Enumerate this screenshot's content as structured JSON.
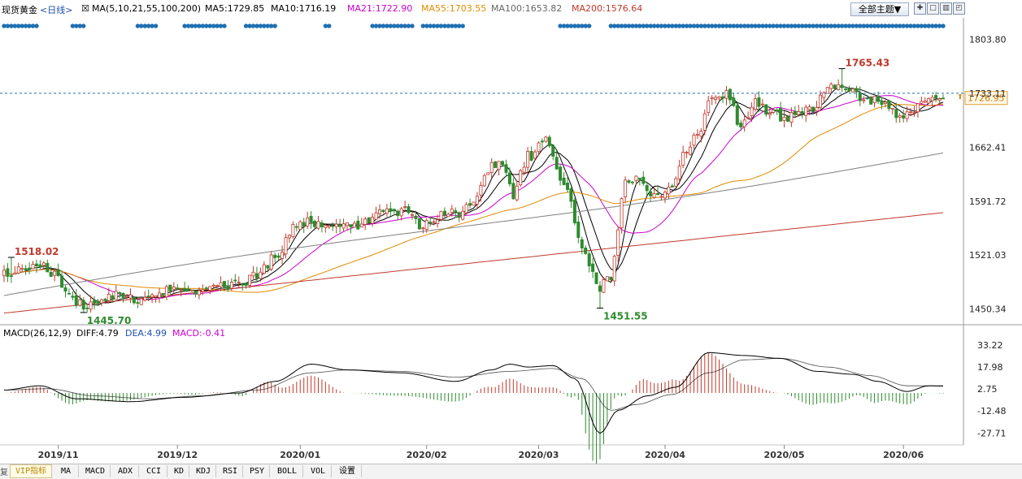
{
  "header": {
    "symbol": "现货黄金",
    "period": "<日线>",
    "indicator_name": "MA(5,10,21,55,100,200)",
    "ma_values": [
      {
        "label": "MA5:1729.85",
        "color": "#000000"
      },
      {
        "label": "MA10:1716.19",
        "color": "#000000"
      },
      {
        "label": "MA21:1722.90",
        "color": "#cc00cc"
      },
      {
        "label": "MA55:1703.55",
        "color": "#e08a00"
      },
      {
        "label": "MA100:1653.82",
        "color": "#666666"
      },
      {
        "label": "MA200:1576.64",
        "color": "#c0392b"
      }
    ],
    "theme_button": "全部主题▼",
    "toolbar_icons": [
      "zoom-icon",
      "window-icon",
      "grid-icon",
      "expand-icon"
    ]
  },
  "macd_header": {
    "name": "MACD(26,12,9)",
    "diff": "DIFF:4.79",
    "dea": "DEA:4.99",
    "macd": "MACD:-0.41"
  },
  "chart_data": [
    {
      "type": "candlestick",
      "y_ticks": [
        "1803.80",
        "1733.11",
        "1662.41",
        "1591.72",
        "1521.03",
        "1450.34"
      ],
      "ylim": [
        1435,
        1815
      ],
      "current_price": "1726.95",
      "annotations": [
        {
          "text": "1518.02",
          "index": 2,
          "value": 1518.02,
          "color": "#c0392b",
          "pos": "above"
        },
        {
          "text": "1445.70",
          "index": 22,
          "value": 1445.7,
          "color": "#2e8b2e",
          "pos": "below"
        },
        {
          "text": "1451.55",
          "index": 165,
          "value": 1451.55,
          "color": "#2e8b2e",
          "pos": "below"
        },
        {
          "text": "1765.43",
          "index": 232,
          "value": 1765.43,
          "color": "#c0392b",
          "pos": "above"
        }
      ],
      "anchors": [
        {
          "i": 0,
          "v": 1495
        },
        {
          "i": 5,
          "v": 1505
        },
        {
          "i": 10,
          "v": 1512
        },
        {
          "i": 14,
          "v": 1496
        },
        {
          "i": 18,
          "v": 1468
        },
        {
          "i": 22,
          "v": 1455
        },
        {
          "i": 28,
          "v": 1466
        },
        {
          "i": 33,
          "v": 1470
        },
        {
          "i": 38,
          "v": 1462
        },
        {
          "i": 42,
          "v": 1466
        },
        {
          "i": 46,
          "v": 1476
        },
        {
          "i": 50,
          "v": 1474
        },
        {
          "i": 55,
          "v": 1478
        },
        {
          "i": 60,
          "v": 1482
        },
        {
          "i": 65,
          "v": 1482
        },
        {
          "i": 70,
          "v": 1495
        },
        {
          "i": 75,
          "v": 1518
        },
        {
          "i": 80,
          "v": 1555
        },
        {
          "i": 85,
          "v": 1565
        },
        {
          "i": 90,
          "v": 1556
        },
        {
          "i": 95,
          "v": 1558
        },
        {
          "i": 100,
          "v": 1563
        },
        {
          "i": 105,
          "v": 1575
        },
        {
          "i": 110,
          "v": 1580
        },
        {
          "i": 115,
          "v": 1562
        },
        {
          "i": 120,
          "v": 1572
        },
        {
          "i": 125,
          "v": 1575
        },
        {
          "i": 130,
          "v": 1590
        },
        {
          "i": 135,
          "v": 1640
        },
        {
          "i": 138,
          "v": 1645
        },
        {
          "i": 141,
          "v": 1600
        },
        {
          "i": 145,
          "v": 1650
        },
        {
          "i": 150,
          "v": 1672
        },
        {
          "i": 155,
          "v": 1620
        },
        {
          "i": 160,
          "v": 1530
        },
        {
          "i": 165,
          "v": 1478
        },
        {
          "i": 168,
          "v": 1495
        },
        {
          "i": 172,
          "v": 1620
        },
        {
          "i": 176,
          "v": 1625
        },
        {
          "i": 180,
          "v": 1600
        },
        {
          "i": 184,
          "v": 1605
        },
        {
          "i": 188,
          "v": 1650
        },
        {
          "i": 192,
          "v": 1680
        },
        {
          "i": 196,
          "v": 1725
        },
        {
          "i": 200,
          "v": 1730
        },
        {
          "i": 204,
          "v": 1690
        },
        {
          "i": 208,
          "v": 1720
        },
        {
          "i": 212,
          "v": 1710
        },
        {
          "i": 216,
          "v": 1700
        },
        {
          "i": 220,
          "v": 1705
        },
        {
          "i": 224,
          "v": 1715
        },
        {
          "i": 228,
          "v": 1740
        },
        {
          "i": 232,
          "v": 1745
        },
        {
          "i": 236,
          "v": 1730
        },
        {
          "i": 240,
          "v": 1725
        },
        {
          "i": 244,
          "v": 1720
        },
        {
          "i": 248,
          "v": 1700
        },
        {
          "i": 252,
          "v": 1710
        },
        {
          "i": 256,
          "v": 1730
        },
        {
          "i": 260,
          "v": 1727
        }
      ],
      "ma_lines": [
        {
          "name": "MA5",
          "period": 5,
          "color": "#000000"
        },
        {
          "name": "MA10",
          "period": 10,
          "color": "#000000"
        },
        {
          "name": "MA21",
          "period": 21,
          "color": "#cc00cc"
        },
        {
          "name": "MA55",
          "period": 55,
          "color": "#e08a00"
        },
        {
          "name": "MA100",
          "period": 100,
          "color": "#808080"
        },
        {
          "name": "MA200",
          "period": 200,
          "color": "#c0392b"
        }
      ],
      "x_labels": [
        {
          "text": "2019/11",
          "index": 15
        },
        {
          "text": "2019/12",
          "index": 48
        },
        {
          "text": "2020/01",
          "index": 82
        },
        {
          "text": "2020/02",
          "index": 117
        },
        {
          "text": "2020/03",
          "index": 148
        },
        {
          "text": "2020/04",
          "index": 183
        },
        {
          "text": "2020/05",
          "index": 216
        },
        {
          "text": "2020/06",
          "index": 249
        }
      ],
      "colors": {
        "up": "#c0392b",
        "down": "#2e8b2e",
        "dot": "#1f6fb2"
      }
    },
    {
      "type": "macd",
      "y_ticks": [
        "33.22",
        "17.98",
        "2.75",
        "-12.48",
        "-27.71"
      ],
      "ylim": [
        -36,
        40
      ],
      "diff_anchors": [
        {
          "i": 0,
          "v": 2
        },
        {
          "i": 10,
          "v": 5
        },
        {
          "i": 20,
          "v": -4
        },
        {
          "i": 35,
          "v": -6
        },
        {
          "i": 50,
          "v": -3
        },
        {
          "i": 65,
          "v": 0
        },
        {
          "i": 75,
          "v": 8
        },
        {
          "i": 85,
          "v": 20
        },
        {
          "i": 95,
          "v": 16
        },
        {
          "i": 110,
          "v": 14
        },
        {
          "i": 125,
          "v": 8
        },
        {
          "i": 135,
          "v": 16
        },
        {
          "i": 140,
          "v": 20
        },
        {
          "i": 145,
          "v": 18
        },
        {
          "i": 152,
          "v": 19
        },
        {
          "i": 158,
          "v": 10
        },
        {
          "i": 165,
          "v": -28
        },
        {
          "i": 170,
          "v": -12
        },
        {
          "i": 178,
          "v": -2
        },
        {
          "i": 186,
          "v": 4
        },
        {
          "i": 195,
          "v": 28
        },
        {
          "i": 205,
          "v": 26
        },
        {
          "i": 215,
          "v": 24
        },
        {
          "i": 225,
          "v": 15
        },
        {
          "i": 235,
          "v": 13
        },
        {
          "i": 242,
          "v": 8
        },
        {
          "i": 250,
          "v": 1
        },
        {
          "i": 256,
          "v": 5
        },
        {
          "i": 260,
          "v": 4.79
        }
      ],
      "dea_anchors": [
        {
          "i": 0,
          "v": 2
        },
        {
          "i": 12,
          "v": 3
        },
        {
          "i": 25,
          "v": -2
        },
        {
          "i": 40,
          "v": -4
        },
        {
          "i": 55,
          "v": -2
        },
        {
          "i": 70,
          "v": 2
        },
        {
          "i": 85,
          "v": 14
        },
        {
          "i": 95,
          "v": 16
        },
        {
          "i": 110,
          "v": 15
        },
        {
          "i": 125,
          "v": 11
        },
        {
          "i": 140,
          "v": 15
        },
        {
          "i": 152,
          "v": 17
        },
        {
          "i": 160,
          "v": 10
        },
        {
          "i": 168,
          "v": -12
        },
        {
          "i": 175,
          "v": -8
        },
        {
          "i": 185,
          "v": -1
        },
        {
          "i": 195,
          "v": 14
        },
        {
          "i": 205,
          "v": 23
        },
        {
          "i": 215,
          "v": 24
        },
        {
          "i": 228,
          "v": 18
        },
        {
          "i": 240,
          "v": 12
        },
        {
          "i": 250,
          "v": 5
        },
        {
          "i": 260,
          "v": 4.99
        }
      ],
      "colors": {
        "diff": "#000000",
        "dea": "#000000",
        "pos": "#c0392b",
        "neg": "#2e8b2e"
      }
    }
  ],
  "bottom_tabs": [
    "VIP指标",
    "MA",
    "MACD",
    "ADX",
    "CCI",
    "KD",
    "KDJ",
    "RSI",
    "PSY",
    "BOLL",
    "VOL",
    "设置"
  ],
  "left_edge_glyph": "复"
}
